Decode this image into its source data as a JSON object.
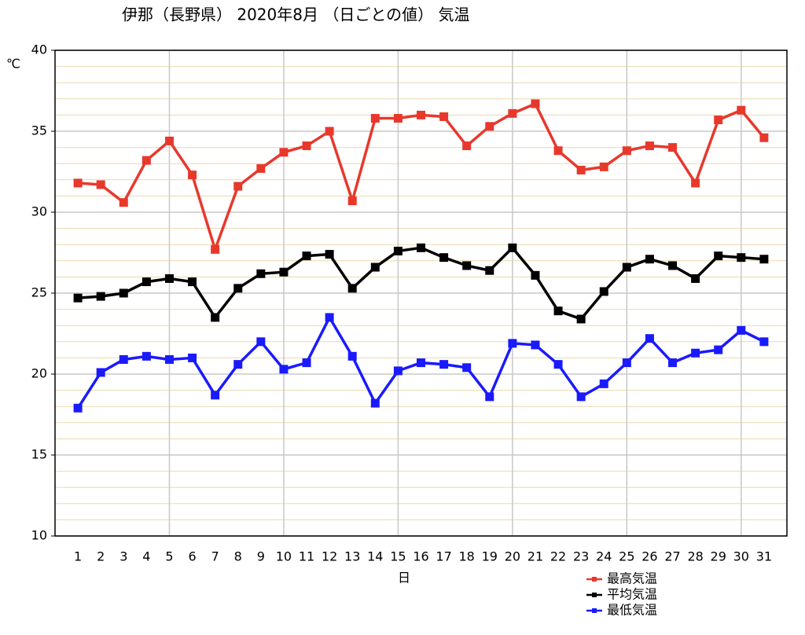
{
  "chart_data": {
    "type": "line",
    "title": "伊那（長野県） 2020年8月 （日ごとの値） 気温",
    "y_unit": "℃",
    "x_label": "日",
    "x": [
      1,
      2,
      3,
      4,
      5,
      6,
      7,
      8,
      9,
      10,
      11,
      12,
      13,
      14,
      15,
      16,
      17,
      18,
      19,
      20,
      21,
      22,
      23,
      24,
      25,
      26,
      27,
      28,
      29,
      30,
      31
    ],
    "xlim": [
      0,
      32
    ],
    "xticks": [
      1,
      2,
      3,
      4,
      5,
      6,
      7,
      8,
      9,
      10,
      11,
      12,
      13,
      14,
      15,
      16,
      17,
      18,
      19,
      20,
      21,
      22,
      23,
      24,
      25,
      26,
      27,
      28,
      29,
      30,
      31
    ],
    "x_major_grid_step": 5,
    "ylim": [
      10,
      40
    ],
    "yticks": [
      10,
      15,
      20,
      25,
      30,
      35,
      40
    ],
    "y_minor_step": 1,
    "grid": true,
    "legend": "bottom-right",
    "series": [
      {
        "name": "最高気温",
        "color": "#e8382c",
        "values": [
          31.8,
          31.7,
          30.6,
          33.2,
          34.4,
          32.3,
          27.7,
          31.6,
          32.7,
          33.7,
          34.1,
          35.0,
          30.7,
          35.8,
          35.8,
          36.0,
          35.9,
          34.1,
          35.3,
          36.1,
          36.7,
          33.8,
          32.6,
          32.8,
          33.8,
          34.1,
          34.0,
          31.8,
          35.7,
          36.3,
          34.6
        ]
      },
      {
        "name": "平均気温",
        "color": "#000000",
        "values": [
          24.7,
          24.8,
          25.0,
          25.7,
          25.9,
          25.7,
          23.5,
          25.3,
          26.2,
          26.3,
          27.3,
          27.4,
          25.3,
          26.6,
          27.6,
          27.8,
          27.2,
          26.7,
          26.4,
          27.8,
          26.1,
          23.9,
          23.4,
          25.1,
          26.6,
          27.1,
          26.7,
          25.9,
          27.3,
          27.2,
          27.1
        ]
      },
      {
        "name": "最低気温",
        "color": "#1a1aff",
        "values": [
          17.9,
          20.1,
          20.9,
          21.1,
          20.9,
          21.0,
          18.7,
          20.6,
          22.0,
          20.3,
          20.7,
          23.5,
          21.1,
          18.2,
          20.2,
          20.7,
          20.6,
          20.4,
          18.6,
          21.9,
          21.8,
          20.6,
          18.6,
          19.4,
          20.7,
          22.2,
          20.7,
          21.3,
          21.5,
          22.7,
          22.0
        ]
      }
    ]
  }
}
